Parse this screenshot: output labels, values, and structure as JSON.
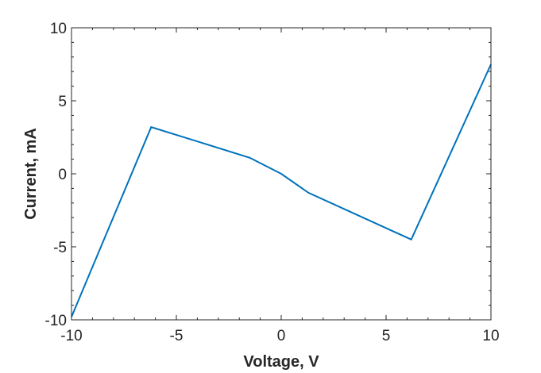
{
  "chart_data": {
    "type": "line",
    "xlabel": "Voltage, V",
    "ylabel": "Current, mA",
    "xlim": [
      -10,
      10
    ],
    "ylim": [
      -10,
      10
    ],
    "xticks": [
      "-10",
      "-5",
      "0",
      "5",
      "10"
    ],
    "yticks": [
      "-10",
      "-5",
      "0",
      "5",
      "10"
    ],
    "grid": false,
    "series": [
      {
        "color": "#0072BD",
        "x": [
          -10,
          -6.2,
          -1.5,
          0,
          1.3,
          6.2,
          10
        ],
        "y": [
          -9.8,
          3.2,
          1.1,
          0.0,
          -1.3,
          -4.5,
          7.5
        ]
      }
    ]
  }
}
